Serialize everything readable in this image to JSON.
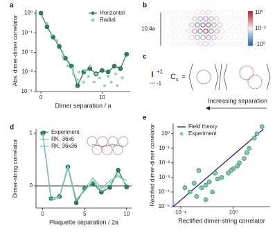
{
  "chart_data": [
    {
      "type": "line",
      "panel_label": "a",
      "ylabel": "Abs. dimer-dimer correlator",
      "xlabel": "Dimer separation / a",
      "xlim": [
        -0.8,
        14.6
      ],
      "xticks": [
        0,
        10
      ],
      "log_y": true,
      "ylim": [
        0.0001,
        1.5
      ],
      "yticks": [
        {
          "value": 1,
          "label": "10⁰"
        },
        {
          "value": 0.1,
          "label": "10⁻¹"
        },
        {
          "value": 0.01,
          "label": "10⁻²"
        },
        {
          "value": 0.001,
          "label": "10⁻³"
        },
        {
          "value": 0.0001,
          "label": "10⁻⁴"
        }
      ],
      "legend": "upper right",
      "series": [
        {
          "name": "Horizontal",
          "color": "#2f7f62",
          "mode": "line-markers",
          "x": [
            0,
            1,
            2,
            3,
            4,
            5,
            6,
            7,
            8,
            9,
            10,
            11,
            12,
            13,
            14
          ],
          "values": [
            1,
            0.2,
            0.06,
            0.02,
            0.005,
            0.002,
            0.0002,
            0.001,
            0.0015,
            0.0008,
            0.0012,
            0.001,
            0.002,
            0.0015,
            0.008
          ]
        },
        {
          "name": "Radial",
          "color": "#8fd4b0",
          "mode": "markers",
          "x": [
            1,
            1.7,
            2.6,
            3.5,
            3.6,
            4.4,
            5.2,
            5.3,
            6,
            6.2,
            7,
            7.2,
            7.8,
            8,
            8.7,
            9,
            9.6,
            10.4,
            11,
            11.5,
            12.2,
            12.5,
            13.3
          ],
          "values": [
            0.3,
            0.08,
            0.04,
            0.01,
            0.006,
            0.002,
            0.0015,
            0.0008,
            0.0004,
            0.001,
            0.0003,
            0.0012,
            0.0006,
            0.002,
            0.0003,
            0.0008,
            0.0005,
            0.0002,
            0.0006,
            0.0003,
            0.0008,
            0.0002,
            0.0005
          ]
        }
      ]
    },
    {
      "type": "line",
      "panel_label": "d",
      "ylabel": "Dimer-string correlator",
      "xlabel": "Plaquette separation / 2a",
      "xlim": [
        -0.8,
        10.6
      ],
      "xticks": [
        0,
        5,
        10
      ],
      "ylim": [
        -0.42,
        1.08
      ],
      "yticks": [
        0,
        1
      ],
      "zero_line": true,
      "legend": "upper left",
      "series": [
        {
          "name": "Experiment",
          "color": "#2f7f62",
          "mode": "line-markers",
          "x": [
            0,
            1,
            2,
            3,
            4,
            5,
            6,
            7,
            8,
            9,
            10
          ],
          "values": [
            1,
            -0.24,
            -0.2,
            0.36,
            -0.32,
            -0.05,
            0.05,
            -0.12,
            -0.03,
            0.3,
            -0.02
          ]
        },
        {
          "name": "RK, 36x6",
          "color": "#7ed3a6",
          "mode": "line",
          "x": [
            0,
            1,
            2,
            3,
            4,
            5,
            6,
            7,
            8,
            9,
            10
          ],
          "values": [
            1,
            -0.25,
            -0.2,
            0.38,
            -0.25,
            -0.1,
            0.1,
            -0.1,
            0.05,
            0.22,
            0.02
          ]
        },
        {
          "name": "RK, 36x36",
          "color": "#7fb8c8",
          "mode": "line",
          "x": [
            0,
            1,
            2,
            3,
            4,
            5,
            6,
            7,
            8,
            9,
            10
          ],
          "values": [
            1,
            -0.28,
            -0.22,
            0.33,
            -0.28,
            -0.05,
            0.15,
            -0.05,
            0.1,
            0.18,
            0.1
          ]
        }
      ]
    },
    {
      "type": "scatter",
      "panel_label": "e",
      "ylabel": "Rectified dimer-dimer correlator",
      "xlabel": "Rectified dimer-string correlator",
      "log_x": true,
      "xlim": [
        0.072,
        5
      ],
      "xticks": [
        {
          "value": 0.1,
          "label": "10⁻¹"
        },
        {
          "value": 1,
          "label": "10⁰"
        }
      ],
      "log_y": true,
      "ylim": [
        1e-05,
        5
      ],
      "yticks": [
        {
          "value": 1,
          "label": "10⁰"
        },
        {
          "value": 0.1,
          "label": "10⁻¹"
        },
        {
          "value": 0.01,
          "label": "10⁻²"
        },
        {
          "value": 0.001,
          "label": "10⁻³"
        },
        {
          "value": 0.0001,
          "label": "10⁻⁴"
        },
        {
          "value": 1e-05,
          "label": "10⁻⁵"
        }
      ],
      "legend": "upper left",
      "series": [
        {
          "name": "Field theory",
          "color": "#1a237e",
          "mode": "line",
          "x": [
            0.072,
            3.7
          ],
          "values": [
            1e-05,
            2
          ]
        },
        {
          "name": "Experiment",
          "color": "#7ec8b0",
          "mode": "markers",
          "x": [
            3.5,
            2.8,
            2.5,
            2,
            1.8,
            1.6,
            1.3,
            1.2,
            1.0,
            0.9,
            0.8,
            0.6,
            0.5,
            0.45,
            0.35,
            0.3,
            0.25,
            0.22,
            0.18,
            0.15,
            0.12,
            0.3,
            0.4,
            0.2
          ],
          "values": [
            3,
            1,
            0.5,
            0.1,
            0.05,
            0.02,
            0.01,
            0.006,
            0.004,
            0.003,
            0.002,
            0.001,
            0.0008,
            0.002,
            0.0005,
            0.0003,
            0.0002,
            0.003,
            0.0004,
            0.0001,
            0.0002,
            3e-05,
            0.0001,
            5e-05
          ]
        }
      ]
    }
  ],
  "heatmap": {
    "panel_label": "b",
    "size_label": "10.4a",
    "colorbar_labels": [
      "10⁰",
      "10⁻²",
      "-10⁰"
    ]
  },
  "diagram": {
    "panel_label": "c",
    "plus": "+1",
    "minus": "-1",
    "formula": "C",
    "subscript": "s",
    "equals": "=",
    "arrow_label": "Increasing separation"
  }
}
